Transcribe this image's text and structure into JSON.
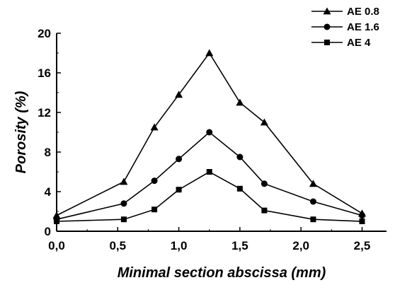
{
  "chart_data": {
    "type": "line",
    "xlabel": "Minimal section abscissa (mm)",
    "ylabel": "Porosity (%)",
    "xlim": [
      0,
      2.7
    ],
    "ylim": [
      0,
      20
    ],
    "x_ticks": [
      0,
      0.5,
      1.0,
      1.5,
      2.0,
      2.5
    ],
    "x_tick_labels": [
      "0,0",
      "0,5",
      "1,0",
      "1,5",
      "2,0",
      "2,5"
    ],
    "y_ticks": [
      0,
      4,
      8,
      12,
      16,
      20
    ],
    "y_tick_labels": [
      "0",
      "4",
      "8",
      "12",
      "16",
      "20"
    ],
    "legend_position": "top-right, outside plot",
    "grid": false,
    "series": [
      {
        "name": "AE 0.8",
        "marker": "triangle",
        "x": [
          0,
          0.55,
          0.8,
          1.0,
          1.25,
          1.5,
          1.7,
          2.1,
          2.5
        ],
        "y": [
          1.6,
          5.0,
          10.5,
          13.8,
          18.0,
          13.0,
          11.0,
          4.8,
          1.8
        ]
      },
      {
        "name": "AE 1.6",
        "marker": "circle",
        "x": [
          0,
          0.55,
          0.8,
          1.0,
          1.25,
          1.5,
          1.7,
          2.1,
          2.5
        ],
        "y": [
          1.2,
          2.8,
          5.1,
          7.3,
          10.0,
          7.5,
          4.8,
          3.0,
          1.6
        ]
      },
      {
        "name": "AE 4",
        "marker": "square",
        "x": [
          0,
          0.55,
          0.8,
          1.0,
          1.25,
          1.5,
          1.7,
          2.1,
          2.5
        ],
        "y": [
          1.0,
          1.2,
          2.2,
          4.2,
          6.0,
          4.3,
          2.1,
          1.2,
          1.0
        ]
      }
    ]
  }
}
